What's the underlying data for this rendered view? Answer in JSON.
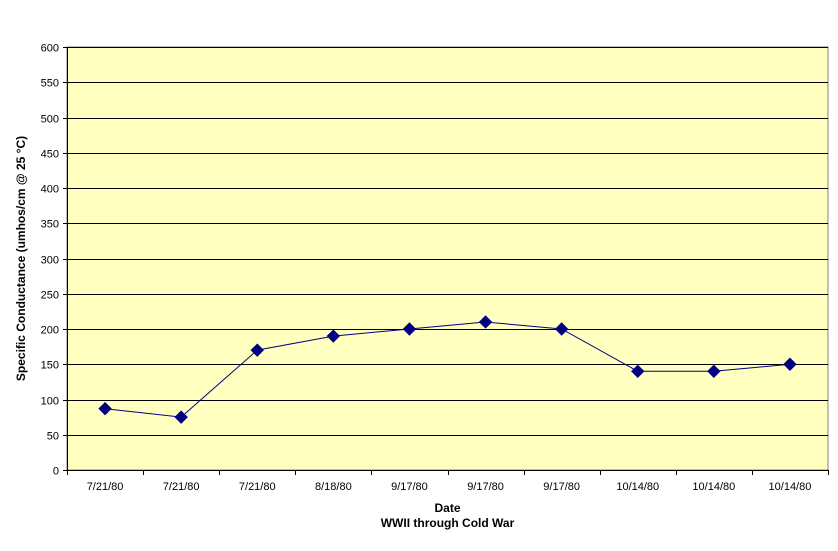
{
  "chart_data": {
    "type": "line",
    "title": "",
    "xlabel": "Date",
    "xlabel_secondary": "WWII through Cold War",
    "ylabel": "Specific Conductance (umhos/cm @ 25 °C)",
    "ylim": [
      0,
      600
    ],
    "yticks": [
      0,
      50,
      100,
      150,
      200,
      250,
      300,
      350,
      400,
      450,
      500,
      550,
      600
    ],
    "grid": true,
    "legend": "none",
    "categories": [
      "7/21/80",
      "7/21/80",
      "7/21/80",
      "8/18/80",
      "9/17/80",
      "9/17/80",
      "9/17/80",
      "10/14/80",
      "10/14/80",
      "10/14/80"
    ],
    "series": [
      {
        "values": [
          87,
          75,
          170,
          190,
          200,
          210,
          200,
          140,
          140,
          150
        ],
        "color": "#000080",
        "marker": "diamond"
      }
    ],
    "colors": {
      "plot_background": "#FFFFC0",
      "gridline": "#000000",
      "line": "#000080",
      "marker": "#000080"
    }
  }
}
